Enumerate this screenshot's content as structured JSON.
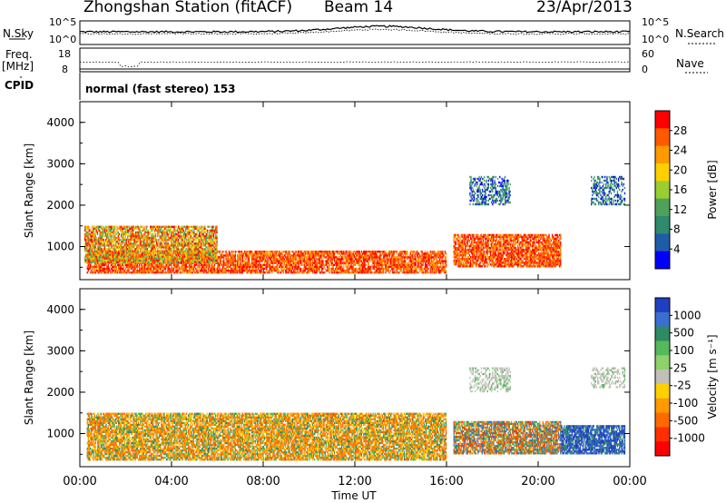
{
  "header": {
    "station": "Zhongshan Station (fitACF)",
    "beam": "Beam 14",
    "date": "23/Apr/2013"
  },
  "top_panels": {
    "nsky_label": "N.Sky",
    "nsky_ticks": [
      "10^5",
      "10^0"
    ],
    "nsearch_label": "N.Search",
    "nsearch_ticks": [
      "10^5",
      "10^0"
    ],
    "freq_label": "Freq.",
    "freq_unit": "[MHz]",
    "freq_ticks": [
      "18",
      "8"
    ],
    "nave_label": "Nave",
    "nave_ticks": [
      "60",
      "0"
    ],
    "cpid_label": "CPID",
    "cpid_value": "normal (fast stereo) 153"
  },
  "chart_data": [
    {
      "type": "heatmap",
      "panel": "power",
      "ylabel": "Slant Range [km]",
      "yticks": [
        "1000",
        "2000",
        "3000",
        "4000"
      ],
      "ylim": [
        200,
        4500
      ],
      "xlim": [
        0,
        24
      ],
      "colorbar_label": "Power [dB]",
      "colorbar_ticks": [
        "28",
        "24",
        "20",
        "16",
        "12",
        "8",
        "4"
      ],
      "colorbar_colors": [
        "#ff0000",
        "#ff5a00",
        "#ff9a00",
        "#ffd000",
        "#9acd32",
        "#4fa05a",
        "#2f8a6e",
        "#1f5ca8",
        "#0000ff"
      ],
      "echo_regions": [
        {
          "t0": 0.3,
          "t1": 16,
          "r0": 350,
          "r1": 900,
          "level": "high"
        },
        {
          "t0": 0.2,
          "t1": 6,
          "r0": 600,
          "r1": 1500,
          "level": "medium"
        },
        {
          "t0": 16.3,
          "t1": 21,
          "r0": 500,
          "r1": 1300,
          "level": "high"
        },
        {
          "t0": 17,
          "t1": 18.8,
          "r0": 2000,
          "r1": 2700,
          "level": "low"
        },
        {
          "t0": 22.3,
          "t1": 23.8,
          "r0": 2000,
          "r1": 2700,
          "level": "low"
        }
      ]
    },
    {
      "type": "heatmap",
      "panel": "velocity",
      "ylabel": "Slant Range [km]",
      "yticks": [
        "1000",
        "2000",
        "3000",
        "4000"
      ],
      "ylim": [
        200,
        4500
      ],
      "xlim": [
        0,
        24
      ],
      "colorbar_label": "Velocity [m s⁻¹]",
      "colorbar_ticks": [
        "1000",
        "500",
        "100",
        "25",
        "-25",
        "-100",
        "-500",
        "-1000"
      ],
      "colorbar_colors": [
        "#1f3fbf",
        "#3a6fd0",
        "#2e8a63",
        "#55b85a",
        "#8fd06a",
        "#c0c0b8",
        "#ffd000",
        "#ff9a00",
        "#ff6a00",
        "#ff3000",
        "#ff0000"
      ],
      "echo_regions": [
        {
          "t0": 0.3,
          "t1": 16,
          "r0": 350,
          "r1": 1500,
          "level": "negative"
        },
        {
          "t0": 16.3,
          "t1": 21,
          "r0": 500,
          "r1": 1300,
          "level": "mixed"
        },
        {
          "t0": 21,
          "t1": 23.8,
          "r0": 500,
          "r1": 1200,
          "level": "positive"
        },
        {
          "t0": 17,
          "t1": 18.8,
          "r0": 2000,
          "r1": 2600,
          "level": "zero"
        },
        {
          "t0": 22.3,
          "t1": 23.8,
          "r0": 2100,
          "r1": 2600,
          "level": "zero"
        }
      ]
    }
  ],
  "xaxis": {
    "ticks": [
      "00:00",
      "04:00",
      "08:00",
      "12:00",
      "16:00",
      "20:00",
      "00:00"
    ],
    "label": "Time UT"
  }
}
